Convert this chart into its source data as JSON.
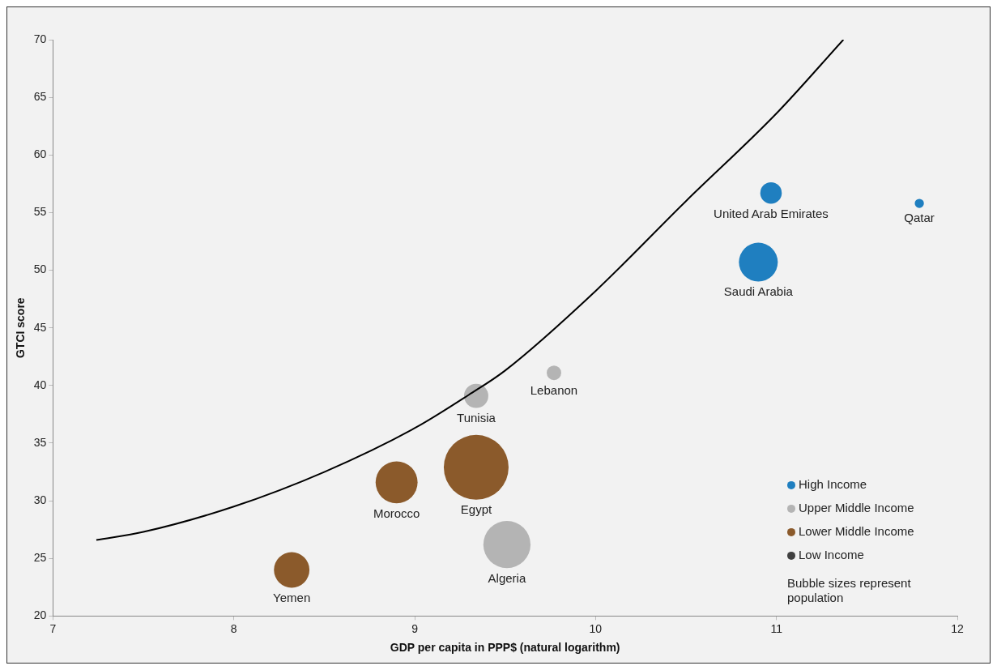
{
  "chart_data": {
    "type": "bubble",
    "xlabel": "GDP per capita in PPP$ (natural logarithm)",
    "ylabel": "GTCI score",
    "xlim": [
      7,
      12
    ],
    "xticks": [
      7,
      8,
      9,
      10,
      11,
      12
    ],
    "ylim": [
      20,
      70
    ],
    "yticks": [
      20,
      25,
      30,
      35,
      40,
      45,
      50,
      55,
      60,
      65,
      70
    ],
    "grid": false,
    "legend": "bottom right",
    "series": [
      {
        "name": "High Income",
        "color": "#1f7fc0",
        "x": [
          10.97,
          11.79,
          10.9
        ],
        "values": [
          56.7,
          55.8,
          50.7
        ],
        "sizes": [
          0.11,
          0.02,
          0.36
        ],
        "value_labels": [
          "United Arab Emirates",
          "Qatar",
          "Saudi Arabia"
        ]
      },
      {
        "name": "Upper Middle Income",
        "color": "#b4b4b4",
        "x": [
          9.77,
          9.34,
          9.51
        ],
        "values": [
          41.1,
          39.1,
          26.2
        ],
        "sizes": [
          0.05,
          0.14,
          0.53
        ],
        "value_labels": [
          "Lebanon",
          "Tunisia",
          "Algeria"
        ]
      },
      {
        "name": "Lower Middle Income",
        "color": "#8b5a2b",
        "x": [
          9.34,
          8.9,
          8.32
        ],
        "values": [
          32.9,
          31.6,
          24.0
        ],
        "sizes": [
          1,
          0.42,
          0.3
        ],
        "value_labels": [
          "Egypt",
          "Morocco",
          "Yemen"
        ]
      },
      {
        "name": "Low Income",
        "color": "#404040"
      },
      {
        "type": "line",
        "color": "#000000",
        "marker": "none",
        "x": [
          7.24,
          7.5,
          8,
          8.5,
          9,
          9.3,
          9.5,
          10,
          10.5,
          11,
          11.37
        ],
        "values": [
          26.6,
          27.3,
          29.5,
          32.5,
          36.3,
          39.2,
          41.3,
          48.2,
          56,
          63.6,
          70
        ]
      }
    ],
    "annotations": [
      "Bubble sizes represent population"
    ]
  }
}
